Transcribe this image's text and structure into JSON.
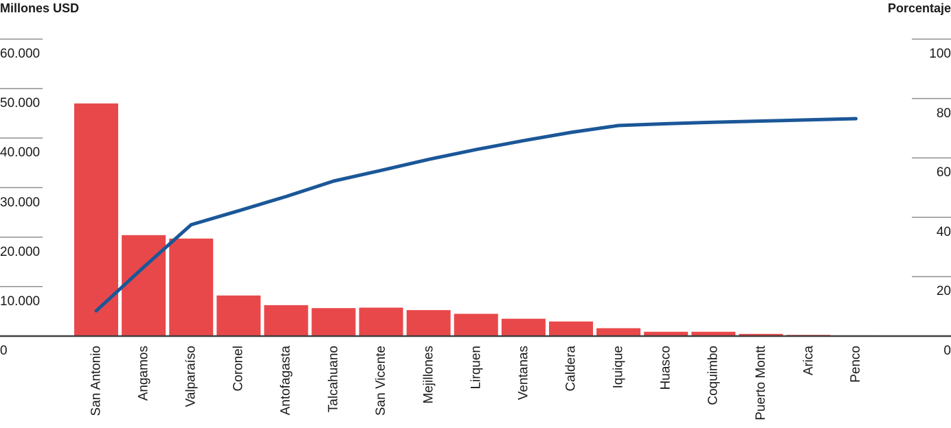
{
  "chart_data": {
    "type": "bar",
    "subtype": "pareto-combo-bar-line",
    "categories": [
      "San Antonio",
      "Angamos",
      "Valparaíso",
      "Coronel",
      "Antofagasta",
      "Talcahuano",
      "San Vicente",
      "Mejillones",
      "Lirquen",
      "Ventanas",
      "Caldera",
      "Iquique",
      "Huasco",
      "Coquimbo",
      "Puerto Montt",
      "Arica",
      "Penco"
    ],
    "series": [
      {
        "name": "Millones USD",
        "type": "bar",
        "axis": "left",
        "color": "#e9484a",
        "values": [
          47000,
          20400,
          19700,
          8200,
          6250,
          5650,
          5750,
          5250,
          4500,
          3500,
          2950,
          1600,
          875,
          875,
          450,
          250,
          150
        ]
      },
      {
        "name": "Porcentaje",
        "type": "line",
        "axis": "right",
        "color": "#1b5798",
        "values": [
          8.5,
          23.2,
          37.5,
          42.2,
          47.0,
          52.2,
          55.8,
          59.5,
          62.8,
          65.8,
          68.6,
          70.9,
          71.5,
          72.0,
          72.4,
          72.8,
          73.2
        ]
      }
    ],
    "left_axis": {
      "title": "Millones USD",
      "range": [
        0,
        60000
      ],
      "tick_values": [
        0,
        10000,
        20000,
        30000,
        40000,
        50000,
        60000
      ],
      "tick_labels": [
        "0",
        "10.000",
        "20.000",
        "30.000",
        "40.000",
        "50.000",
        "60.000"
      ]
    },
    "right_axis": {
      "title": "Porcentaje",
      "range": [
        0,
        100
      ],
      "tick_values": [
        0,
        20,
        40,
        60,
        80,
        100
      ],
      "tick_labels": [
        "0",
        "20",
        "40",
        "60",
        "80",
        "100"
      ]
    },
    "legend": "none",
    "grid": "short edge ticks only, no full gridlines"
  },
  "colors": {
    "bar": "#e9484a",
    "line": "#1b5798",
    "tick_line": "#8f8f8f",
    "baseline": "#404040",
    "text": "#1a1a1a",
    "background": "#ffffff"
  }
}
